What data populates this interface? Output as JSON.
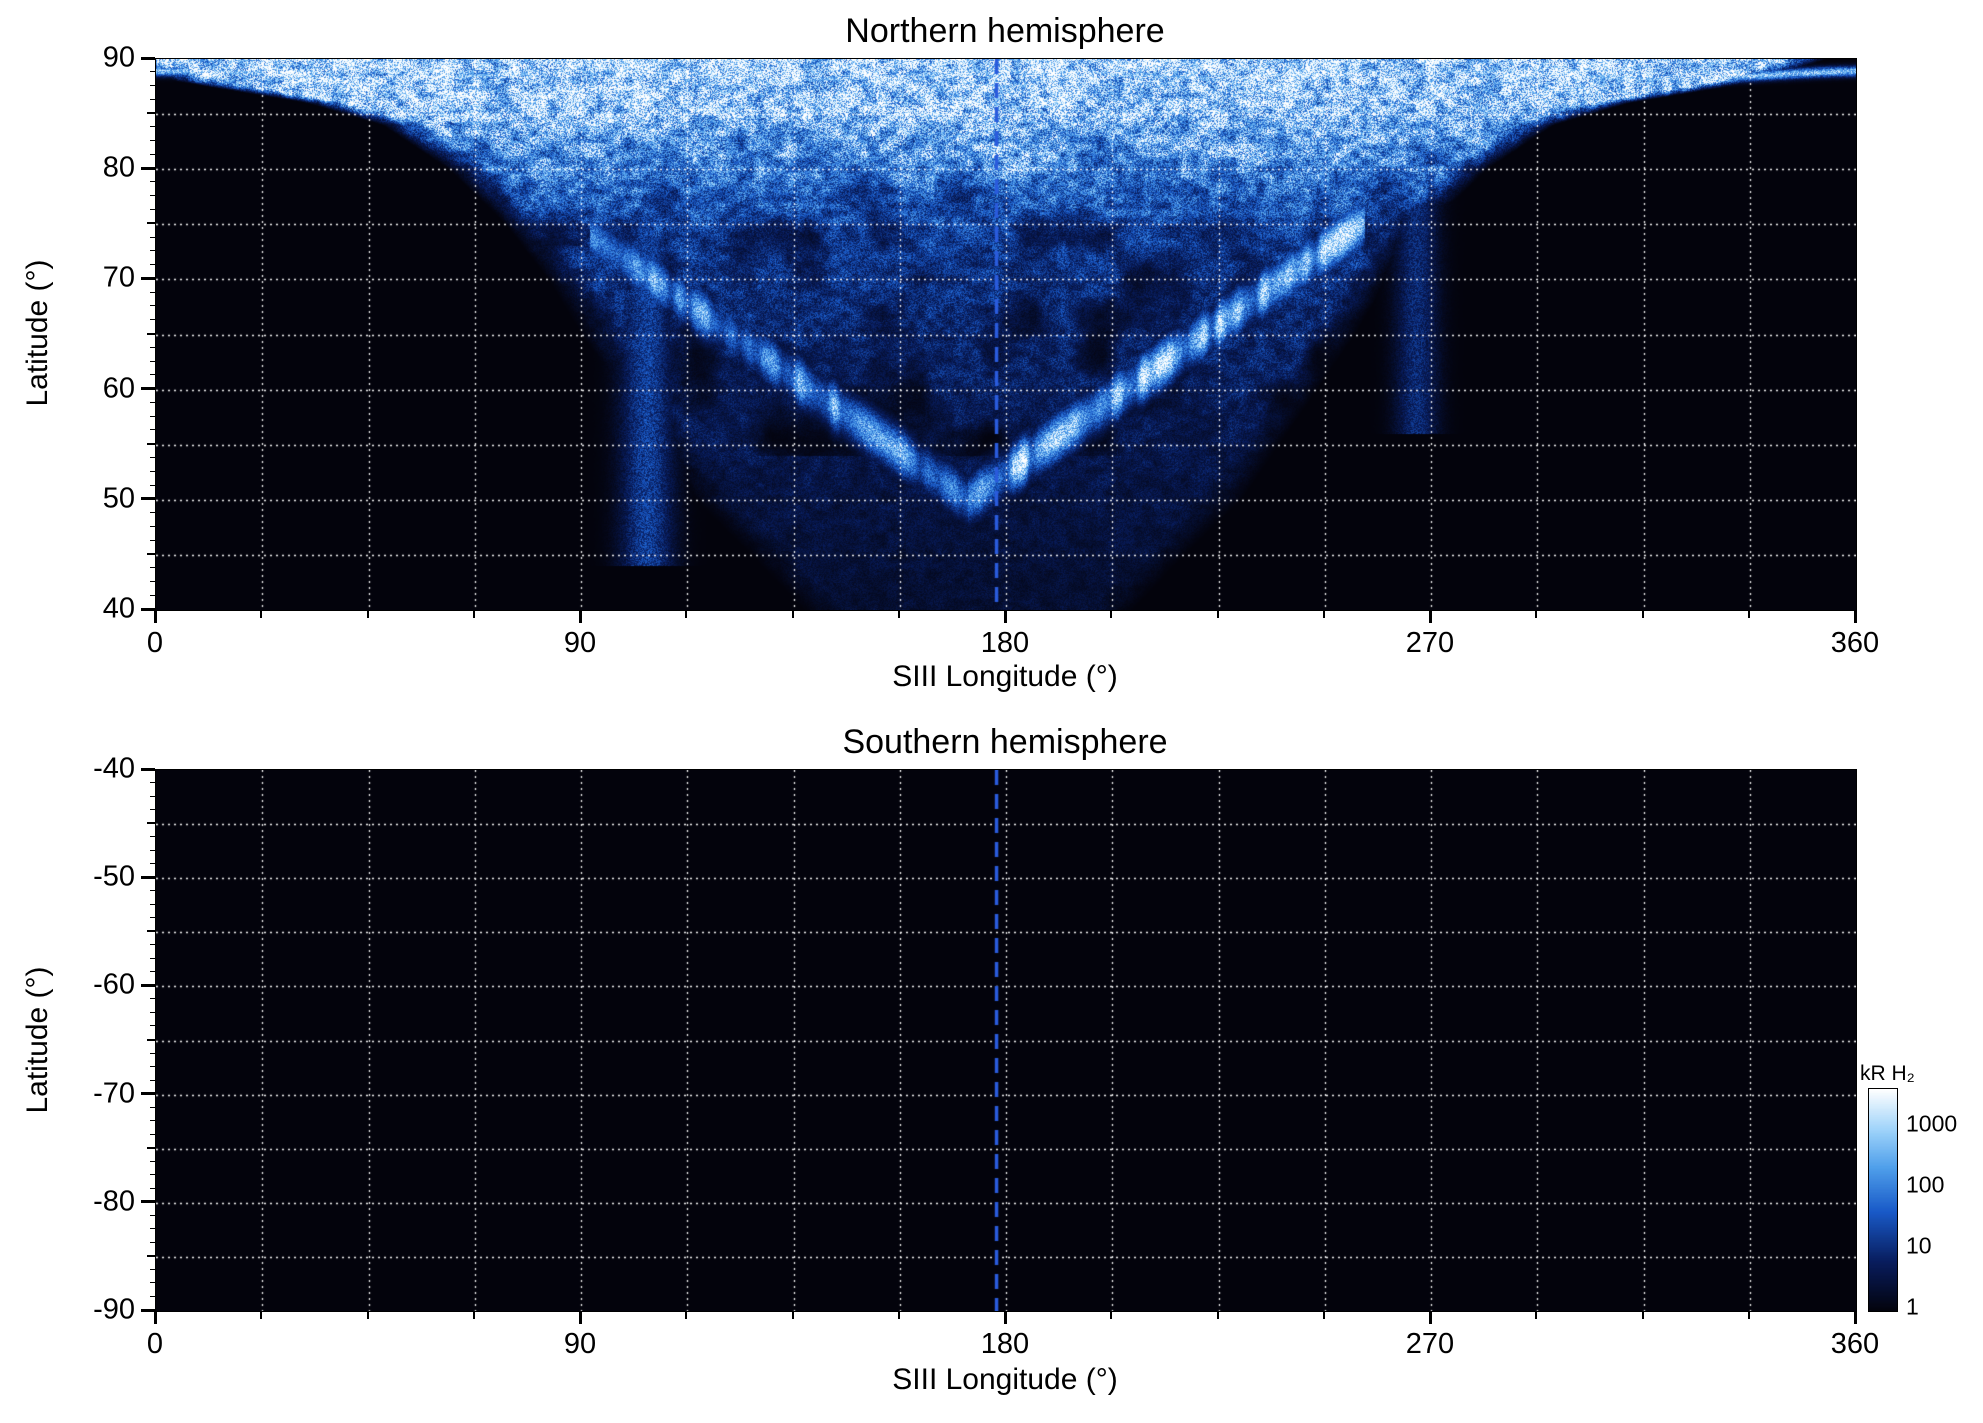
{
  "chart_data": [
    {
      "type": "heatmap",
      "title": "Northern hemisphere",
      "xlabel": "SIII Longitude (°)",
      "ylabel": "Latitude (°)",
      "xlim": [
        0,
        360
      ],
      "ylim": [
        40,
        90
      ],
      "xticks": [
        0,
        90,
        180,
        270,
        360
      ],
      "yticks": [
        90,
        80,
        70,
        60,
        50,
        40
      ],
      "grid": {
        "x_step_deg": 22.5,
        "y_step_deg": 5,
        "style": "white dotted"
      },
      "reference_line": {
        "longitude": 178,
        "style": "dashed",
        "color": "#2a5bdc"
      },
      "background_color": "#000000",
      "units": "kR H₂",
      "features": [
        {
          "name": "polar-cap-emission",
          "description": "Bright white H2 emission (approaching 1000 kR) above ~78° latitude spanning roughly 30°–300° longitude"
        },
        {
          "name": "main-emission-arc",
          "description": "Bright V-shaped arc dipping from ~72° latitude near 110° longitude down to ~50° latitude near 172° longitude, rising back to ~72° near 250°"
        },
        {
          "name": "thin-polar-line",
          "description": "Thin bright emission line at ~88.5° latitude extending across all 0–360° of longitude"
        },
        {
          "name": "diffuse-speckled-emission",
          "description": "Speckled blue emission (~1–100 kR) filling a funnel-shaped region down to ~40° latitude between ~100° and ~240° longitude"
        },
        {
          "name": "longitude-band-105",
          "description": "Vertical band of enhanced blue emission near 105° longitude from the pole down to ~45° latitude"
        },
        {
          "name": "longitude-band-267",
          "description": "Faint vertical band of emission near 267° longitude between ~57° and ~77° latitude"
        }
      ]
    },
    {
      "type": "heatmap",
      "title": "Southern hemisphere",
      "xlabel": "SIII Longitude (°)",
      "ylabel": "Latitude (°)",
      "xlim": [
        0,
        360
      ],
      "ylim": [
        -90,
        -40
      ],
      "xticks": [
        0,
        90,
        180,
        270,
        360
      ],
      "yticks": [
        -40,
        -50,
        -60,
        -70,
        -80,
        -90
      ],
      "grid": {
        "x_step_deg": 22.5,
        "y_step_deg": 5,
        "style": "white dotted"
      },
      "reference_line": {
        "longitude": 178,
        "style": "dashed",
        "color": "#2a5bdc"
      },
      "background_color": "#000000",
      "units": "kR H₂",
      "features": [
        {
          "name": "no-emission",
          "description": "No H2 emission visible; entire map at or below ~1 kR (black) with only the dotted gridlines and dashed reference line visible"
        }
      ]
    }
  ],
  "colorbar": {
    "label": "kR H₂",
    "scale": "log",
    "ticks": [
      1000,
      100,
      10,
      1
    ],
    "colors_top_to_bottom": [
      "#ffffff",
      "#a0d4fa",
      "#5096e6",
      "#1a5ac8",
      "#08185c",
      "#01030c"
    ]
  }
}
